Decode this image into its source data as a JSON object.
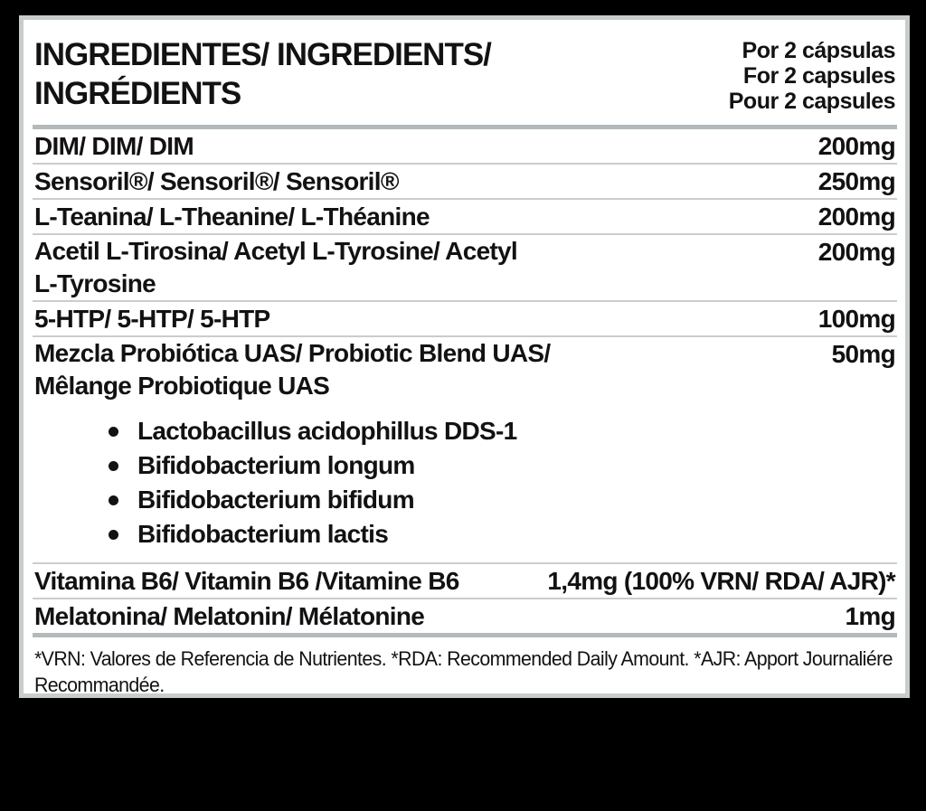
{
  "panel": {
    "header": {
      "title_lines": [
        "INGREDIENTES/ INGREDIENTS/",
        "INGRÉDIENTS"
      ],
      "serving_lines": [
        "Por 2 cápsulas",
        "For 2 capsules",
        "Pour 2 capsules"
      ]
    },
    "rows": [
      {
        "name_lines": [
          "DIM/ DIM/ DIM"
        ],
        "amount": "200mg"
      },
      {
        "name_lines": [
          "Sensoril®/ Sensoril®/ Sensoril®"
        ],
        "amount": "250mg"
      },
      {
        "name_lines": [
          "L-Teanina/ L-Theanine/ L-Théanine"
        ],
        "amount": "200mg"
      },
      {
        "name_lines": [
          "Acetil L-Tirosina/ Acetyl L-Tyrosine/ Acetyl",
          "L-Tyrosine"
        ],
        "amount": "200mg"
      },
      {
        "name_lines": [
          "5-HTP/ 5-HTP/ 5-HTP"
        ],
        "amount": "100mg"
      },
      {
        "name_lines": [
          "Mezcla Probiótica UAS/ Probiotic Blend UAS/",
          "Mêlange Probiotique UAS"
        ],
        "amount": "50mg",
        "sub_items": [
          "Lactobacillus acidophillus DDS-1",
          "Bifidobacterium longum",
          "Bifidobacterium bifidum",
          "Bifidobacterium lactis"
        ]
      },
      {
        "name_lines": [
          "Vitamina B6/ Vitamin B6 /Vitamine B6"
        ],
        "amount": "1,4mg (100% VRN/ RDA/ AJR)*"
      },
      {
        "name_lines": [
          "Melatonina/ Melatonin/ Mélatonine"
        ],
        "amount": "1mg"
      }
    ],
    "footnote_lines": [
      "*VRN: Valores de Referencia de Nutrientes. *RDA: Recommended Daily Amount. *AJR: Apport Journaliére",
      "Recommandée."
    ],
    "colors": {
      "background": "#000000",
      "panel_background": "#ffffff",
      "panel_border": "#c9cccd",
      "divider_thick": "#b4b9bb",
      "divider_thin": "#cbcdcd",
      "text": "#121212"
    }
  }
}
